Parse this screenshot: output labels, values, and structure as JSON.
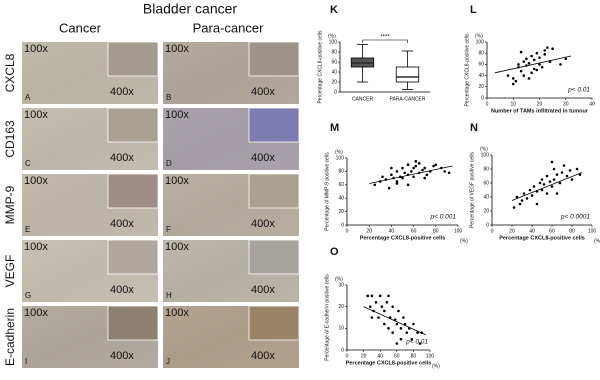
{
  "figure": {
    "title": "Bladder cancer",
    "columns": [
      "Cancer",
      "Para-cancer"
    ],
    "low_mag": "100x",
    "high_mag": "400x",
    "rows": [
      {
        "label": "CXCL8",
        "panels": [
          "A",
          "B"
        ]
      },
      {
        "label": "CD163",
        "panels": [
          "C",
          "D"
        ]
      },
      {
        "label": "MMP-9",
        "panels": [
          "E",
          "F"
        ]
      },
      {
        "label": "VEGF",
        "panels": [
          "G",
          "H"
        ]
      },
      {
        "label": "E-cadherin",
        "panels": [
          "I",
          "J"
        ]
      }
    ]
  },
  "chart_data": [
    {
      "type": "box",
      "panel": "K",
      "ylabel": "Percentage CXCL8-positive cells",
      "y_unit": "(%)",
      "significance": "****",
      "categories": [
        "CANCER",
        "PARA-CANCER"
      ],
      "boxes": [
        {
          "min": 20,
          "q1": 50,
          "median": 58,
          "q3": 68,
          "max": 95,
          "color": "#555555"
        },
        {
          "min": 5,
          "q1": 20,
          "median": 30,
          "q3": 50,
          "max": 82,
          "color": "#ffffff"
        }
      ],
      "ylim": [
        0,
        100
      ],
      "yticks": [
        0,
        20,
        40,
        60,
        80,
        100
      ]
    },
    {
      "type": "scatter",
      "panel": "L",
      "ylabel": "Percentage CXCL8-positive cells",
      "y_unit": "(%)",
      "xlabel": "Number of TAMs infiltrated in tumour",
      "annotation": "p< 0.01",
      "x": [
        8,
        10,
        12,
        12,
        13,
        14,
        15,
        15,
        16,
        17,
        17,
        18,
        18,
        19,
        20,
        20,
        21,
        22,
        23,
        24,
        10,
        11,
        14,
        16,
        19,
        22,
        25,
        28,
        30,
        13
      ],
      "values": [
        40,
        35,
        55,
        60,
        48,
        65,
        58,
        70,
        62,
        45,
        75,
        68,
        52,
        80,
        60,
        72,
        55,
        85,
        90,
        65,
        25,
        30,
        40,
        35,
        50,
        78,
        88,
        60,
        70,
        82
      ],
      "trendline": {
        "x": [
          3,
          32
        ],
        "values": [
          45,
          75
        ]
      },
      "xlim": [
        0,
        40
      ],
      "xticks": [
        0,
        10,
        20,
        30,
        40
      ],
      "ylim": [
        0,
        100
      ],
      "yticks": [
        0,
        20,
        40,
        60,
        80,
        100
      ]
    },
    {
      "type": "scatter",
      "panel": "M",
      "ylabel": "Percentage of MMP-9 positive cells",
      "y_unit": "(%)",
      "xlabel": "Percentage CXCL8-positive cells",
      "x_unit": "(%)",
      "annotation": "p< 0.001",
      "x": [
        25,
        30,
        32,
        35,
        38,
        40,
        42,
        45,
        45,
        48,
        50,
        50,
        52,
        55,
        55,
        58,
        60,
        60,
        62,
        65,
        65,
        68,
        70,
        72,
        75,
        78,
        80,
        85,
        88,
        92,
        40,
        55,
        62,
        70,
        45
      ],
      "values": [
        60,
        65,
        72,
        68,
        55,
        75,
        70,
        65,
        80,
        72,
        70,
        85,
        78,
        75,
        90,
        80,
        72,
        85,
        88,
        78,
        92,
        82,
        85,
        75,
        80,
        88,
        90,
        85,
        80,
        78,
        85,
        60,
        95,
        70,
        62
      ],
      "trendline": {
        "x": [
          20,
          95
        ],
        "values": [
          62,
          88
        ]
      },
      "xlim": [
        0,
        100
      ],
      "xticks": [
        0,
        20,
        40,
        60,
        80,
        100
      ],
      "ylim": [
        0,
        100
      ],
      "yticks": [
        0,
        20,
        40,
        60,
        80,
        100
      ]
    },
    {
      "type": "scatter",
      "panel": "N",
      "ylabel": "Percentage of VEGF positive cells",
      "y_unit": "(%)",
      "xlabel": "Percentage CXCL8-positive cells",
      "x_unit": "(%)",
      "annotation": "p< 0.0001",
      "x": [
        22,
        25,
        28,
        30,
        32,
        35,
        38,
        40,
        42,
        45,
        48,
        50,
        50,
        52,
        55,
        55,
        58,
        60,
        62,
        62,
        65,
        68,
        70,
        72,
        75,
        78,
        80,
        85,
        88,
        45,
        60,
        65
      ],
      "values": [
        25,
        40,
        30,
        35,
        45,
        38,
        50,
        42,
        55,
        48,
        60,
        50,
        65,
        58,
        45,
        70,
        62,
        55,
        80,
        65,
        72,
        60,
        75,
        85,
        70,
        78,
        65,
        80,
        72,
        30,
        90,
        45
      ],
      "trendline": {
        "x": [
          20,
          90
        ],
        "values": [
          35,
          75
        ]
      },
      "xlim": [
        0,
        100
      ],
      "xticks": [
        0,
        20,
        40,
        60,
        80,
        100
      ],
      "ylim": [
        0,
        100
      ],
      "yticks": [
        0,
        20,
        40,
        60,
        80,
        100
      ]
    },
    {
      "type": "scatter",
      "panel": "O",
      "ylabel": "Percentage of E-cadherin positive cells",
      "y_unit": "(%)",
      "xlabel": "Percentage CXCL8-positive cells",
      "x_unit": "(%)",
      "annotation": "p< 0.01",
      "x": [
        25,
        28,
        30,
        32,
        35,
        38,
        40,
        42,
        45,
        45,
        48,
        50,
        52,
        55,
        55,
        58,
        60,
        62,
        65,
        65,
        68,
        70,
        72,
        75,
        78,
        80,
        85,
        88,
        90,
        30,
        50,
        60
      ],
      "values": [
        25,
        20,
        25,
        18,
        22,
        15,
        25,
        20,
        12,
        18,
        22,
        10,
        15,
        20,
        8,
        14,
        12,
        18,
        10,
        5,
        15,
        12,
        8,
        10,
        5,
        12,
        8,
        3,
        8,
        15,
        25,
        3
      ],
      "trendline": {
        "x": [
          20,
          95
        ],
        "values": [
          20,
          7
        ]
      },
      "xlim": [
        0,
        100
      ],
      "xticks": [
        0,
        20,
        40,
        60,
        80,
        100
      ],
      "ylim": [
        0,
        30
      ],
      "yticks": [
        0,
        10,
        20,
        30
      ]
    }
  ]
}
